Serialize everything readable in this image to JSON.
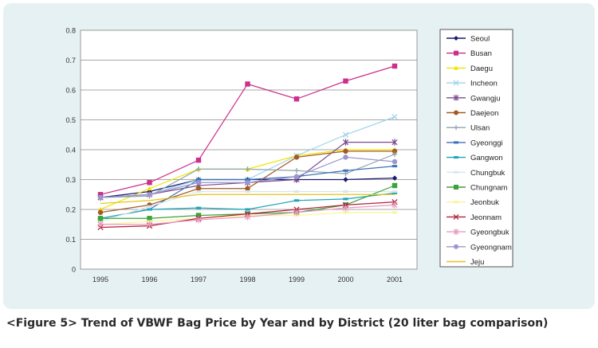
{
  "caption": "<Figure 5> Trend of VBWF Bag Price by Year and by District (20 liter bag comparison)",
  "chart_data": {
    "type": "line",
    "title": "",
    "xlabel": "",
    "ylabel": "",
    "x": [
      "1995",
      "1996",
      "1997",
      "1998",
      "1999",
      "2000",
      "2001"
    ],
    "ylim": [
      0,
      0.8
    ],
    "yticks": [
      "0",
      "0.1",
      "0.2",
      "0.3",
      "0.4",
      "0.5",
      "0.6",
      "0.7",
      "0.8"
    ],
    "grid": true,
    "legend_position": "right",
    "series": [
      {
        "name": "Seoul",
        "color": "#1a1a6e",
        "marker": "diamond",
        "values": [
          0.24,
          0.26,
          0.3,
          0.3,
          0.3,
          0.3,
          0.305
        ]
      },
      {
        "name": "Busan",
        "color": "#cc2f8c",
        "marker": "square",
        "values": [
          0.25,
          0.29,
          0.365,
          0.62,
          0.57,
          0.63,
          0.68
        ]
      },
      {
        "name": "Daegu",
        "color": "#f2e400",
        "marker": "triangle",
        "values": [
          0.2,
          0.27,
          0.335,
          0.335,
          0.38,
          0.4,
          0.4
        ]
      },
      {
        "name": "Incheon",
        "color": "#9fd3ea",
        "marker": "x",
        "values": [
          0.24,
          0.25,
          0.3,
          0.3,
          0.38,
          0.45,
          0.51
        ]
      },
      {
        "name": "Gwangju",
        "color": "#7b4b8e",
        "marker": "star",
        "values": [
          0.24,
          0.25,
          0.28,
          0.29,
          0.3,
          0.425,
          0.425
        ]
      },
      {
        "name": "Daejeon",
        "color": "#a45a24",
        "marker": "circle",
        "values": [
          0.19,
          0.215,
          0.27,
          0.27,
          0.375,
          0.395,
          0.395
        ]
      },
      {
        "name": "Ulsan",
        "color": "#8ea3ad",
        "marker": "plus",
        "values": [
          0.24,
          0.245,
          0.335,
          0.335,
          0.33,
          0.32,
          0.385
        ]
      },
      {
        "name": "Gyeonggi",
        "color": "#3e72b8",
        "marker": "dash",
        "values": [
          0.17,
          0.2,
          0.3,
          0.3,
          0.31,
          0.33,
          0.345
        ]
      },
      {
        "name": "Gangwon",
        "color": "#1ca6b8",
        "marker": "dash",
        "values": [
          0.17,
          0.2,
          0.205,
          0.2,
          0.23,
          0.235,
          0.255
        ]
      },
      {
        "name": "Chungbuk",
        "color": "#d8e6ec",
        "marker": "dash",
        "values": [
          0.16,
          0.21,
          0.26,
          0.26,
          0.26,
          0.26,
          0.26
        ]
      },
      {
        "name": "Chungnam",
        "color": "#3aa33a",
        "marker": "square",
        "values": [
          0.17,
          0.17,
          0.18,
          0.185,
          0.19,
          0.215,
          0.28
        ]
      },
      {
        "name": "Jeonbuk",
        "color": "#fbf59a",
        "marker": "dash",
        "values": [
          0.15,
          0.16,
          0.17,
          0.18,
          0.18,
          0.19,
          0.19
        ]
      },
      {
        "name": "Jeonnam",
        "color": "#b2223a",
        "marker": "x",
        "values": [
          0.14,
          0.145,
          0.17,
          0.185,
          0.2,
          0.215,
          0.225
        ]
      },
      {
        "name": "Gyeongbuk",
        "color": "#e79bbf",
        "marker": "star",
        "values": [
          0.15,
          0.15,
          0.165,
          0.175,
          0.19,
          0.205,
          0.215
        ]
      },
      {
        "name": "Gyeongnam",
        "color": "#9b96cc",
        "marker": "circle",
        "values": [
          0.24,
          0.25,
          0.29,
          0.29,
          0.31,
          0.375,
          0.36
        ]
      },
      {
        "name": "Jeju",
        "color": "#e6c21a",
        "marker": "none",
        "values": [
          0.22,
          0.23,
          0.25,
          0.25,
          0.25,
          0.25,
          0.25
        ]
      }
    ]
  }
}
